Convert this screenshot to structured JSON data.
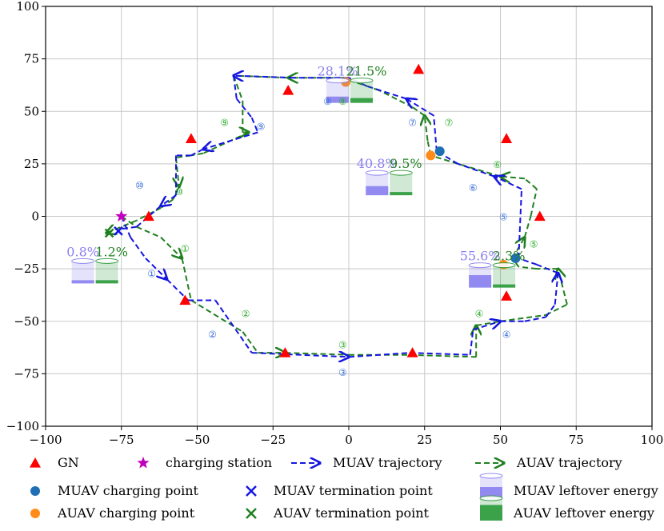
{
  "chart_data": {
    "type": "line",
    "title": "",
    "xlabel": "",
    "ylabel": "",
    "xlim": [
      -100,
      100
    ],
    "ylim": [
      -100,
      100
    ],
    "x_ticks": [
      "−100",
      "−75",
      "−50",
      "−25",
      "0",
      "25",
      "50",
      "75",
      "100"
    ],
    "y_ticks": [
      "100",
      "75",
      "50",
      "25",
      "0",
      "−25",
      "−50",
      "−75",
      "−100"
    ],
    "grid": true,
    "legend_position": "bottom",
    "colors": {
      "gn": "#ff0000",
      "charging_station": "#bf00bf",
      "muav": "#1515e0",
      "auav": "#208020",
      "muav_charge": "#1f6fb4",
      "auav_charge": "#ff8c1a",
      "muav_energy": "#8a80f0",
      "auav_energy": "#2a9a3a"
    },
    "legend": [
      {
        "key": "gn",
        "label": "GN"
      },
      {
        "key": "charging_station",
        "label": "charging station"
      },
      {
        "key": "muav_traj",
        "label": "MUAV trajectory"
      },
      {
        "key": "auav_traj",
        "label": "AUAV trajectory"
      },
      {
        "key": "muav_charge",
        "label": "MUAV charging point"
      },
      {
        "key": "muav_term",
        "label": "MUAV termination point"
      },
      {
        "key": "muav_energy",
        "label": "MUAV leftover energy"
      },
      {
        "key": "auav_charge",
        "label": "AUAV charging point"
      },
      {
        "key": "auav_term",
        "label": "AUAV termination point"
      },
      {
        "key": "auav_energy",
        "label": "AUAV leftover energy"
      }
    ],
    "gn_points": [
      [
        -66,
        0
      ],
      [
        -54,
        -40
      ],
      [
        -52,
        37
      ],
      [
        -20,
        60
      ],
      [
        -21,
        -65
      ],
      [
        21,
        -65
      ],
      [
        23,
        70
      ],
      [
        52,
        37
      ],
      [
        63,
        0
      ],
      [
        52,
        -38
      ]
    ],
    "charging_station": [
      -75,
      0
    ],
    "muav_trajectory": [
      [
        -75,
        0
      ],
      [
        -72,
        -10
      ],
      [
        -67,
        -20
      ],
      [
        -60,
        -30
      ],
      [
        -53,
        -40
      ],
      [
        -44,
        -40
      ],
      [
        -32,
        -65
      ],
      [
        0,
        -67
      ],
      [
        20,
        -65
      ],
      [
        40,
        -66
      ],
      [
        41,
        -54
      ],
      [
        50,
        -50
      ],
      [
        58,
        -50
      ],
      [
        65,
        -48
      ],
      [
        68,
        -42
      ],
      [
        69,
        -27
      ],
      [
        62,
        -23
      ],
      [
        56,
        -20
      ],
      [
        57,
        13
      ],
      [
        48,
        19
      ],
      [
        36,
        25
      ],
      [
        29,
        31
      ],
      [
        28,
        48
      ],
      [
        19,
        56
      ],
      [
        6,
        62
      ],
      [
        0,
        66
      ],
      [
        -18,
        66
      ],
      [
        -38,
        67
      ],
      [
        -37,
        56
      ],
      [
        -32,
        47
      ],
      [
        -30,
        40
      ],
      [
        -48,
        32
      ],
      [
        -52,
        29
      ],
      [
        -57,
        29
      ],
      [
        -57,
        10
      ],
      [
        -62,
        5
      ],
      [
        -70,
        -5
      ],
      [
        -75,
        -6
      ]
    ],
    "auav_trajectory": [
      [
        -75,
        0
      ],
      [
        -70,
        -5
      ],
      [
        -62,
        -10
      ],
      [
        -55,
        -20
      ],
      [
        -52,
        -40
      ],
      [
        -35,
        -55
      ],
      [
        -30,
        -65
      ],
      [
        -21,
        -65
      ],
      [
        0,
        -66
      ],
      [
        20,
        -66
      ],
      [
        42,
        -67
      ],
      [
        42,
        -52
      ],
      [
        50,
        -50
      ],
      [
        65,
        -47
      ],
      [
        72,
        -42
      ],
      [
        69,
        -25
      ],
      [
        62,
        -25
      ],
      [
        56,
        -24
      ],
      [
        54,
        -20
      ],
      [
        58,
        -10
      ],
      [
        60,
        0
      ],
      [
        62,
        13
      ],
      [
        58,
        18
      ],
      [
        50,
        19
      ],
      [
        36,
        25
      ],
      [
        27,
        29
      ],
      [
        26,
        36
      ],
      [
        25,
        48
      ],
      [
        21,
        52
      ],
      [
        10,
        60
      ],
      [
        -2,
        66
      ],
      [
        -20,
        66
      ],
      [
        -38,
        67
      ],
      [
        -35,
        55
      ],
      [
        -35,
        40
      ],
      [
        -33,
        40
      ],
      [
        -48,
        30
      ],
      [
        -52,
        29
      ],
      [
        -57,
        28
      ],
      [
        -56,
        14
      ],
      [
        -58,
        8
      ],
      [
        -62,
        4
      ],
      [
        -70,
        -2
      ],
      [
        -80,
        -8
      ]
    ],
    "muav_charge_points": [
      [
        30,
        31
      ],
      [
        55,
        -20
      ]
    ],
    "auav_charge_points": [
      [
        -1,
        64
      ],
      [
        27,
        29
      ],
      [
        51,
        -23
      ]
    ],
    "muav_termination": [
      -76,
      -7
    ],
    "auav_termination": [
      -79,
      -8
    ],
    "energy": [
      {
        "x": -87,
        "muav": "0.8%",
        "auav": "1.2%",
        "muav_fill": 0.008,
        "auav_fill": 0.012
      },
      {
        "x": 18,
        "muav": "40.8%",
        "auav": "9.5%",
        "muav_fill": 0.408,
        "auav_fill": 0.095
      },
      {
        "x": 44,
        "muav": "55.6%",
        "auav": "2.3%",
        "muav_fill": 0.556,
        "auav_fill": 0.023
      },
      {
        "x": 18,
        "muav": "28.1%",
        "auav": "21.5%",
        "muav_fill": 0.281,
        "auav_fill": 0.215
      }
    ],
    "segment_labels": [
      {
        "text": "①",
        "series": "muav",
        "pt": [
          -65,
          -27
        ]
      },
      {
        "text": "①",
        "series": "auav",
        "pt": [
          -54,
          -15
        ]
      },
      {
        "text": "②",
        "series": "muav",
        "pt": [
          -45,
          -56
        ]
      },
      {
        "text": "②",
        "series": "auav",
        "pt": [
          -34,
          -46
        ]
      },
      {
        "text": "③",
        "series": "muav",
        "pt": [
          -2,
          -74
        ]
      },
      {
        "text": "③",
        "series": "auav",
        "pt": [
          -2,
          -61
        ]
      },
      {
        "text": "④",
        "series": "muav",
        "pt": [
          52,
          -56
        ]
      },
      {
        "text": "④",
        "series": "auav",
        "pt": [
          43,
          -46
        ]
      },
      {
        "text": "⑤",
        "series": "muav",
        "pt": [
          51,
          0
        ]
      },
      {
        "text": "⑤",
        "series": "auav",
        "pt": [
          61,
          -13
        ]
      },
      {
        "text": "⑥",
        "series": "muav",
        "pt": [
          41,
          14
        ]
      },
      {
        "text": "⑥",
        "series": "auav",
        "pt": [
          49,
          25
        ]
      },
      {
        "text": "⑦",
        "series": "muav",
        "pt": [
          21,
          45
        ]
      },
      {
        "text": "⑦",
        "series": "auav",
        "pt": [
          33,
          45
        ]
      },
      {
        "text": "⑧",
        "series": "muav",
        "pt": [
          -7,
          55
        ]
      },
      {
        "text": "⑧",
        "series": "auav",
        "pt": [
          -2,
          55
        ]
      },
      {
        "text": "⑨",
        "series": "muav",
        "pt": [
          -29,
          43
        ]
      },
      {
        "text": "⑨",
        "series": "auav",
        "pt": [
          -41,
          45
        ]
      },
      {
        "text": "⑩",
        "series": "muav",
        "pt": [
          -69,
          15
        ]
      },
      {
        "text": "⑩",
        "series": "auav",
        "pt": [
          -56,
          12
        ]
      }
    ]
  }
}
